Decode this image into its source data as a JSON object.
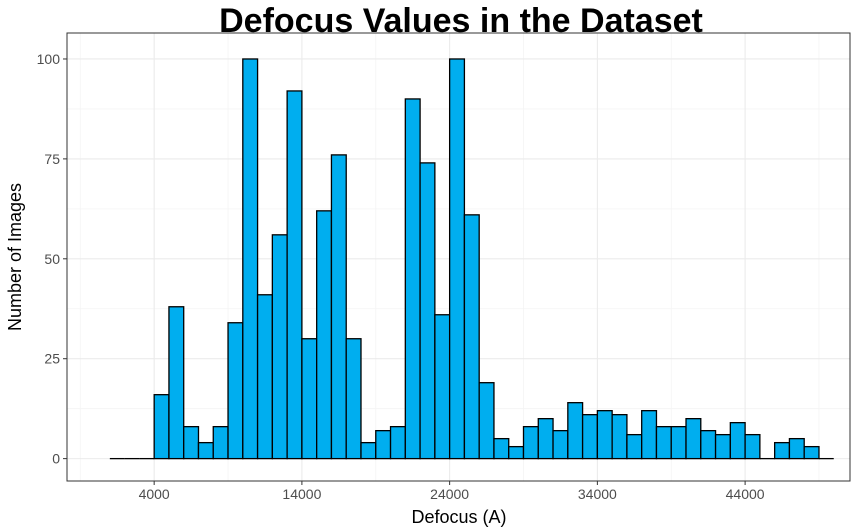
{
  "chart_data": {
    "type": "bar",
    "title": "Defocus Values in the Dataset",
    "xlabel": "Defocus (A)",
    "ylabel": "Number of Images",
    "x_ticks": [
      4000,
      14000,
      24000,
      34000,
      44000
    ],
    "y_ticks": [
      0,
      25,
      50,
      75,
      100
    ],
    "xlim": [
      -1900,
      51100
    ],
    "ylim": [
      -5.6,
      106.5
    ],
    "bin_width": 1000,
    "bins_start": 1000,
    "values": [
      0,
      0,
      0,
      16,
      38,
      8,
      4,
      8,
      34,
      100,
      41,
      56,
      92,
      30,
      62,
      76,
      30,
      4,
      7,
      8,
      90,
      74,
      36,
      100,
      61,
      19,
      5,
      3,
      8,
      10,
      7,
      14,
      11,
      12,
      11,
      6,
      12,
      8,
      8,
      10,
      7,
      6,
      9,
      6,
      0,
      4,
      5,
      3,
      0
    ],
    "grid": true,
    "colors": {
      "bar_fill": "#00aeef",
      "bar_stroke": "#000000",
      "grid_major": "#ebebeb",
      "grid_minor": "#f4f4f4",
      "panel_border": "#333333",
      "tick_text": "#4d4d4d"
    }
  }
}
